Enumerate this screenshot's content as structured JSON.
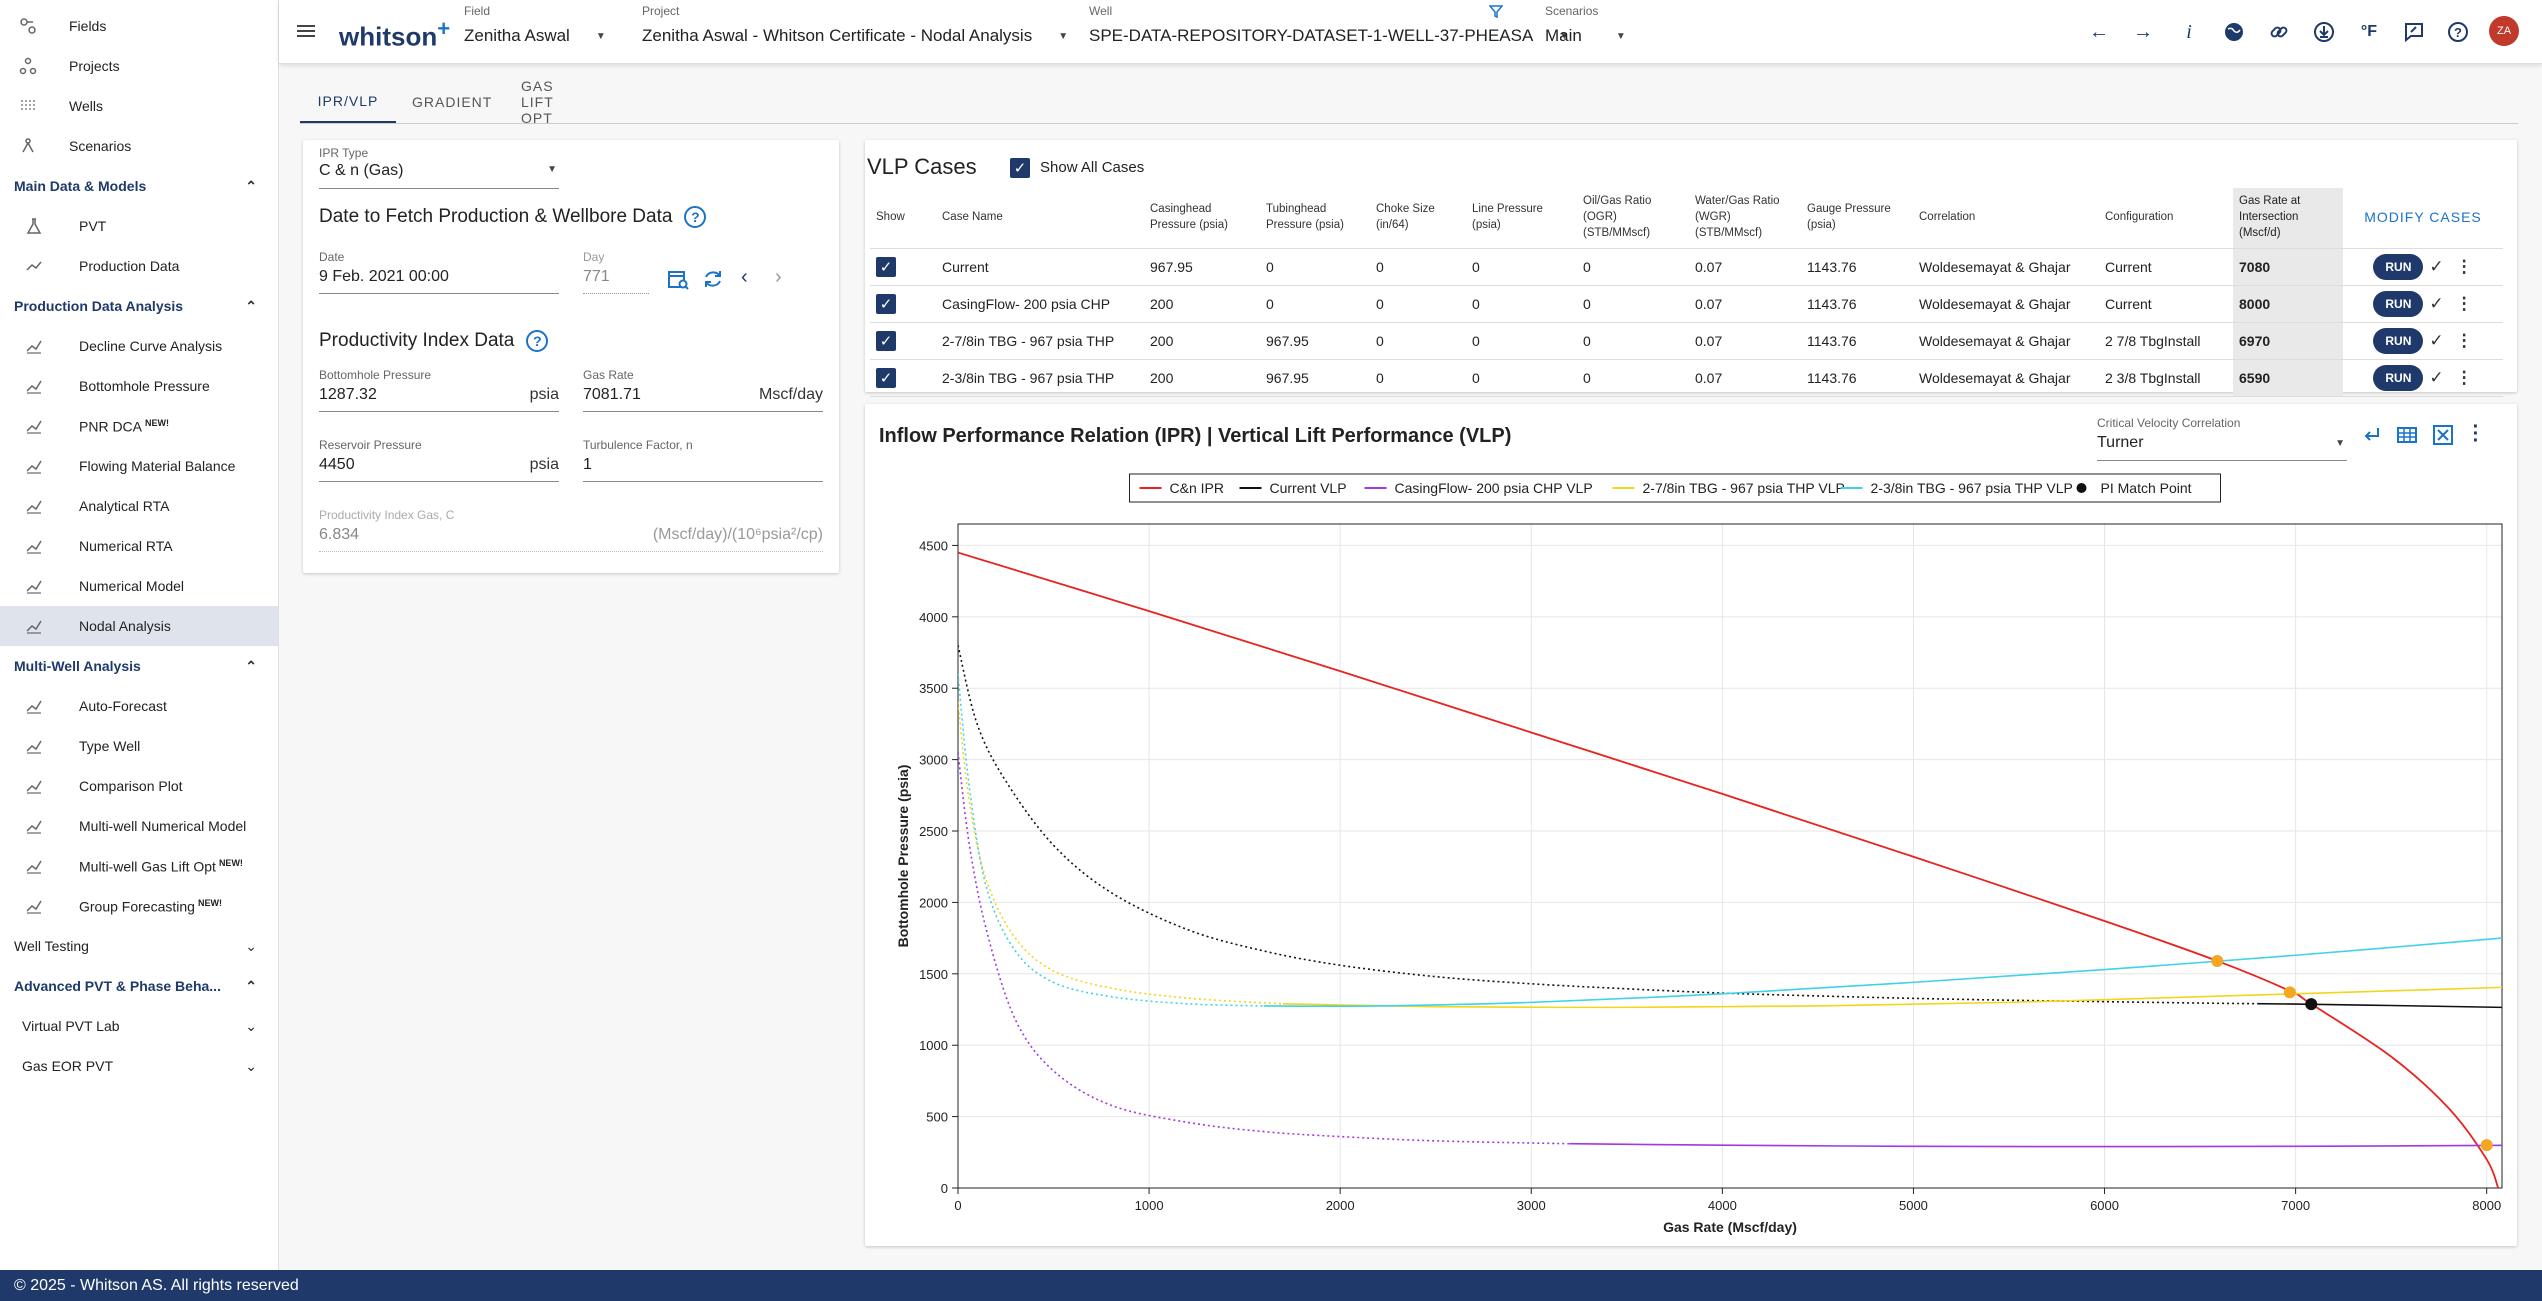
{
  "app": {
    "logo": "whitson",
    "logo_plus": "+"
  },
  "sidebar": {
    "top_items": [
      {
        "label": "Fields",
        "icon": "fields-icon"
      },
      {
        "label": "Projects",
        "icon": "projects-icon"
      },
      {
        "label": "Wells",
        "icon": "wells-icon"
      },
      {
        "label": "Scenarios",
        "icon": "scenarios-icon"
      }
    ],
    "sections": [
      {
        "label": "Main Data & Models",
        "expanded": true,
        "items": [
          {
            "label": "PVT",
            "icon": "flask-icon"
          },
          {
            "label": "Production Data",
            "icon": "line-chart-icon"
          }
        ]
      },
      {
        "label": "Production Data Analysis",
        "expanded": true,
        "items": [
          {
            "label": "Decline Curve Analysis",
            "icon": "decline-icon"
          },
          {
            "label": "Bottomhole Pressure",
            "icon": "gauge-icon"
          },
          {
            "label": "PNR DCA",
            "new": "NEW!",
            "icon": "pnr-icon"
          },
          {
            "label": "Flowing Material Balance",
            "icon": "fmb-icon"
          },
          {
            "label": "Analytical RTA",
            "icon": "analytical-icon"
          },
          {
            "label": "Numerical RTA",
            "icon": "numerical-rta-icon"
          },
          {
            "label": "Numerical Model",
            "icon": "grid-icon"
          },
          {
            "label": "Nodal Analysis",
            "icon": "nodal-icon",
            "active": true
          }
        ]
      },
      {
        "label": "Multi-Well Analysis",
        "expanded": true,
        "items": [
          {
            "label": "Auto-Forecast",
            "icon": "auto-forecast-icon"
          },
          {
            "label": "Type Well",
            "icon": "type-well-icon"
          },
          {
            "label": "Comparison Plot",
            "icon": "comparison-icon"
          },
          {
            "label": "Multi-well Numerical Model",
            "icon": "multiwell-icon"
          },
          {
            "label": "Multi-well Gas Lift Opt",
            "new": "NEW!",
            "icon": "gaslift-icon"
          },
          {
            "label": "Group Forecasting",
            "new": "NEW!",
            "icon": "group-icon"
          }
        ]
      }
    ],
    "well_testing": "Well Testing",
    "advanced": "Advanced PVT & Phase Beha...",
    "virtual_pvt": "Virtual PVT Lab",
    "gas_eor": "Gas EOR PVT"
  },
  "topbar": {
    "field_label": "Field",
    "field_value": "Zenitha Aswal",
    "project_label": "Project",
    "project_value": "Zenitha Aswal - Whitson Certificate - Nodal Analysis",
    "well_label": "Well",
    "well_value": "SPE-DATA-REPOSITORY-DATASET-1-WELL-37-PHEASA",
    "scenario_label": "Scenarios",
    "scenario_value": "Main",
    "avatar": "ZA"
  },
  "tabs": [
    "IPR/VLP",
    "GRADIENT",
    "GAS LIFT OPT"
  ],
  "ipr": {
    "type_label": "IPR Type",
    "type_value": "C & n (Gas)",
    "date_heading": "Date to Fetch Production & Wellbore Data",
    "date_label": "Date",
    "date_value": "9 Feb. 2021 00:00",
    "day_label": "Day",
    "day_value": "771",
    "pi_heading": "Productivity Index Data",
    "bhp_label": "Bottomhole Pressure",
    "bhp_value": "1287.32",
    "bhp_unit": "psia",
    "gasrate_label": "Gas Rate",
    "gasrate_value": "7081.71",
    "gasrate_unit": "Mscf/day",
    "resp_label": "Reservoir Pressure",
    "resp_value": "4450",
    "resp_unit": "psia",
    "turb_label": "Turbulence Factor, n",
    "turb_value": "1",
    "pic_label": "Productivity Index Gas, C",
    "pic_value": "6.834",
    "pic_unit": "(Mscf/day)/(10⁶psia²/cp)"
  },
  "vlp": {
    "title": "VLP Cases",
    "show_all": "Show All Cases",
    "modify": "MODIFY CASES",
    "run": "RUN",
    "headers": [
      "Show",
      "Case Name",
      "Casinghead Pressure (psia)",
      "Tubinghead Pressure (psia)",
      "Choke Size (in/64)",
      "Line Pressure (psia)",
      "Oil/Gas Ratio (OGR) (STB/MMscf)",
      "Water/Gas Ratio (WGR) (STB/MMscf)",
      "Gauge Pressure (psia)",
      "Correlation",
      "Configuration",
      "Gas Rate at Intersection (Mscf/d)"
    ],
    "rows": [
      [
        "Current",
        "967.95",
        "0",
        "0",
        "0",
        "0",
        "0.07",
        "1143.76",
        "Woldesemayat & Ghajar",
        "Current",
        "7080"
      ],
      [
        "CasingFlow- 200 psia CHP",
        "200",
        "0",
        "0",
        "0",
        "0",
        "0.07",
        "1143.76",
        "Woldesemayat & Ghajar",
        "Current",
        "8000"
      ],
      [
        "2-7/8in TBG - 967 psia THP",
        "200",
        "967.95",
        "0",
        "0",
        "0",
        "0.07",
        "1143.76",
        "Woldesemayat & Ghajar",
        "2 7/8 TbgInstall",
        "6970"
      ],
      [
        "2-3/8in TBG - 967 psia THP",
        "200",
        "967.95",
        "0",
        "0",
        "0",
        "0.07",
        "1143.76",
        "Woldesemayat & Ghajar",
        "2 3/8 TbgInstall",
        "6590"
      ]
    ]
  },
  "chart_panel": {
    "title": "Inflow Performance Relation (IPR) | Vertical Lift Performance (VLP)",
    "cv_label": "Critical Velocity Correlation",
    "cv_value": "Turner"
  },
  "chart_data": {
    "type": "line",
    "xlabel": "Gas Rate (Mscf/day)",
    "ylabel": "Bottomhole Pressure (psia)",
    "xlim": [
      0,
      8080
    ],
    "ylim": [
      0,
      4650
    ],
    "xticks": [
      0,
      1000,
      2000,
      3000,
      4000,
      5000,
      6000,
      7000,
      8000
    ],
    "yticks": [
      0,
      500,
      1000,
      1500,
      2000,
      2500,
      3000,
      3500,
      4000,
      4500
    ],
    "series": [
      {
        "name": "C&n IPR",
        "color": "#e8231f",
        "dash": false,
        "points": [
          [
            0,
            4450
          ],
          [
            1000,
            4040
          ],
          [
            2000,
            3620
          ],
          [
            3000,
            3190
          ],
          [
            4000,
            2760
          ],
          [
            5000,
            2320
          ],
          [
            6000,
            1870
          ],
          [
            6590,
            1590
          ],
          [
            6970,
            1380
          ],
          [
            7080,
            1290
          ],
          [
            7500,
            920
          ],
          [
            7800,
            560
          ],
          [
            8000,
            200
          ],
          [
            8060,
            0
          ]
        ]
      },
      {
        "name": "Current VLP",
        "color": "#111111",
        "dash": true,
        "solidFrom": 6800,
        "points": [
          [
            0,
            3800
          ],
          [
            100,
            3250
          ],
          [
            250,
            2850
          ],
          [
            500,
            2400
          ],
          [
            800,
            2070
          ],
          [
            1200,
            1810
          ],
          [
            1600,
            1660
          ],
          [
            2000,
            1560
          ],
          [
            2500,
            1480
          ],
          [
            3000,
            1430
          ],
          [
            3500,
            1395
          ],
          [
            4000,
            1365
          ],
          [
            4500,
            1345
          ],
          [
            5000,
            1328
          ],
          [
            5500,
            1315
          ],
          [
            6000,
            1305
          ],
          [
            6500,
            1295
          ],
          [
            7000,
            1288
          ],
          [
            7500,
            1278
          ],
          [
            8080,
            1265
          ]
        ]
      },
      {
        "name": "CasingFlow- 200 psia CHP VLP",
        "color": "#a238e0",
        "dash": true,
        "solidFrom": 3200,
        "points": [
          [
            0,
            3050
          ],
          [
            60,
            2400
          ],
          [
            150,
            1800
          ],
          [
            300,
            1180
          ],
          [
            500,
            820
          ],
          [
            800,
            580
          ],
          [
            1200,
            460
          ],
          [
            1600,
            395
          ],
          [
            2000,
            360
          ],
          [
            2500,
            330
          ],
          [
            3200,
            310
          ],
          [
            4000,
            300
          ],
          [
            5000,
            292
          ],
          [
            6000,
            290
          ],
          [
            7000,
            292
          ],
          [
            8000,
            298
          ],
          [
            8080,
            300
          ]
        ]
      },
      {
        "name": "2-7/8in TBG - 967 psia THP VLP",
        "color": "#f2d61b",
        "dash": true,
        "solidFrom": 1700,
        "points": [
          [
            0,
            3400
          ],
          [
            60,
            2700
          ],
          [
            150,
            2150
          ],
          [
            300,
            1750
          ],
          [
            500,
            1520
          ],
          [
            800,
            1400
          ],
          [
            1200,
            1330
          ],
          [
            1700,
            1290
          ],
          [
            2500,
            1270
          ],
          [
            3500,
            1265
          ],
          [
            4500,
            1275
          ],
          [
            5500,
            1300
          ],
          [
            6500,
            1340
          ],
          [
            7000,
            1360
          ],
          [
            8080,
            1405
          ]
        ]
      },
      {
        "name": "2-3/8in TBG - 967 psia THP VLP",
        "color": "#3fd2e8",
        "dash": true,
        "solidFrom": 1600,
        "points": [
          [
            0,
            3600
          ],
          [
            60,
            2800
          ],
          [
            150,
            2100
          ],
          [
            300,
            1660
          ],
          [
            500,
            1440
          ],
          [
            800,
            1340
          ],
          [
            1200,
            1290
          ],
          [
            1600,
            1275
          ],
          [
            2200,
            1275
          ],
          [
            3000,
            1300
          ],
          [
            4000,
            1360
          ],
          [
            5000,
            1440
          ],
          [
            6000,
            1530
          ],
          [
            7000,
            1630
          ],
          [
            8080,
            1750
          ]
        ]
      }
    ],
    "match_points": [
      [
        6590,
        1590
      ],
      [
        6970,
        1370
      ],
      [
        8000,
        300
      ]
    ],
    "pi_match_point": [
      7081.71,
      1287.32
    ],
    "legend": [
      "C&n IPR",
      "Current VLP",
      "CasingFlow- 200 psia CHP VLP",
      "2-7/8in TBG - 967 psia THP VLP",
      "2-3/8in TBG - 967 psia THP VLP",
      "PI Match Point"
    ]
  },
  "footer": "© 2025 - Whitson AS. All rights reserved"
}
